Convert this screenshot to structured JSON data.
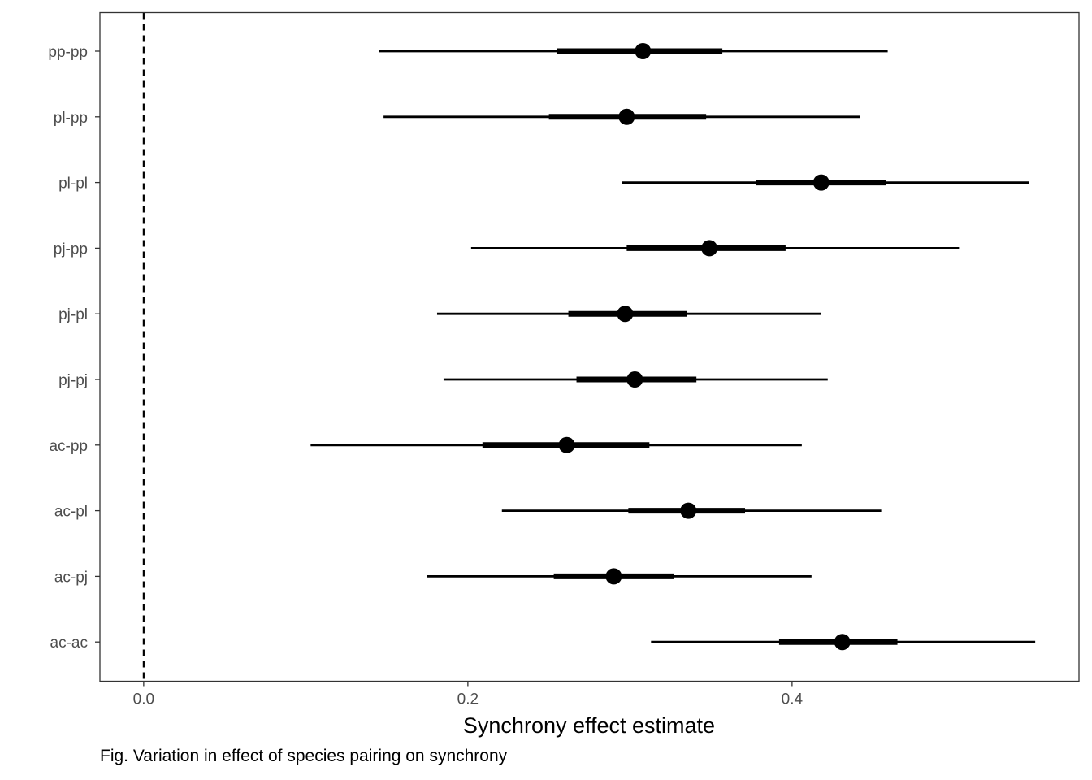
{
  "chart_data": {
    "type": "interval",
    "xlabel": "Synchrony effect estimate",
    "ylabel": "",
    "xlim": [
      -0.027,
      0.577
    ],
    "x_ticks": [
      0.0,
      0.2,
      0.4
    ],
    "x_tick_labels": [
      "0.0",
      "0.2",
      "0.4"
    ],
    "reference_line": {
      "x": 0.0,
      "style": "dashed"
    },
    "grid": false,
    "categories": [
      "pp-pp",
      "pl-pp",
      "pl-pl",
      "pj-pp",
      "pj-pl",
      "pj-pj",
      "ac-pp",
      "ac-pl",
      "ac-pj",
      "ac-ac"
    ],
    "estimates": [
      {
        "category": "pp-pp",
        "estimate": 0.308,
        "inner": [
          0.255,
          0.357
        ],
        "outer": [
          0.145,
          0.459
        ]
      },
      {
        "category": "pl-pp",
        "estimate": 0.298,
        "inner": [
          0.25,
          0.347
        ],
        "outer": [
          0.148,
          0.442
        ]
      },
      {
        "category": "pl-pl",
        "estimate": 0.418,
        "inner": [
          0.378,
          0.458
        ],
        "outer": [
          0.295,
          0.546
        ]
      },
      {
        "category": "pj-pp",
        "estimate": 0.349,
        "inner": [
          0.298,
          0.396
        ],
        "outer": [
          0.202,
          0.503
        ]
      },
      {
        "category": "pj-pl",
        "estimate": 0.297,
        "inner": [
          0.262,
          0.335
        ],
        "outer": [
          0.181,
          0.418
        ]
      },
      {
        "category": "pj-pj",
        "estimate": 0.303,
        "inner": [
          0.267,
          0.341
        ],
        "outer": [
          0.185,
          0.422
        ]
      },
      {
        "category": "ac-pp",
        "estimate": 0.261,
        "inner": [
          0.209,
          0.312
        ],
        "outer": [
          0.103,
          0.406
        ]
      },
      {
        "category": "ac-pl",
        "estimate": 0.336,
        "inner": [
          0.299,
          0.371
        ],
        "outer": [
          0.221,
          0.455
        ]
      },
      {
        "category": "ac-pj",
        "estimate": 0.29,
        "inner": [
          0.253,
          0.327
        ],
        "outer": [
          0.175,
          0.412
        ]
      },
      {
        "category": "ac-ac",
        "estimate": 0.431,
        "inner": [
          0.392,
          0.465
        ],
        "outer": [
          0.313,
          0.55
        ]
      }
    ],
    "colors": {
      "marks": "#000000",
      "panel_border": "#333333",
      "tick_text": "#4d4d4d"
    }
  },
  "caption": "Fig. Variation in effect of species pairing on synchrony"
}
